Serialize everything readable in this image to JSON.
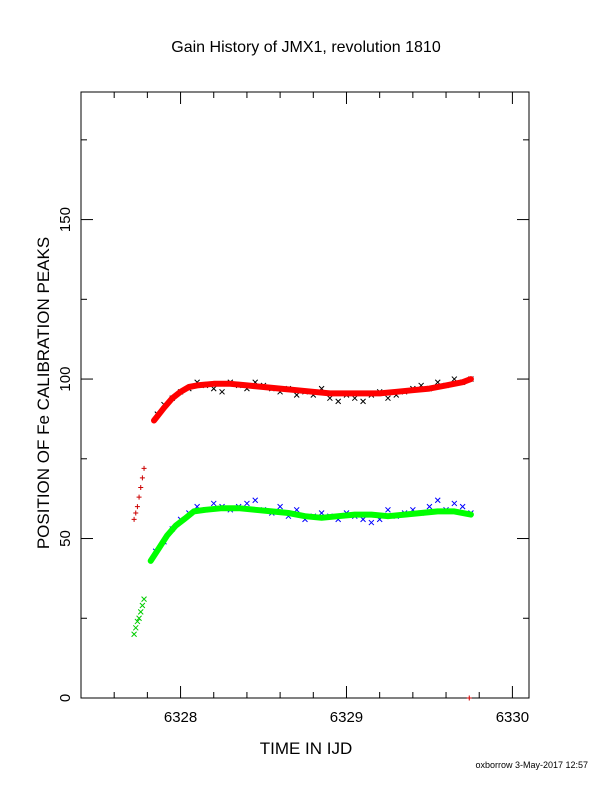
{
  "chart_data": {
    "type": "scatter",
    "title": "Gain History of JMX1, revolution 1810",
    "xlabel": "TIME IN IJD",
    "ylabel": "POSITION OF Fe CALIBRATION PEAKS",
    "xlim": [
      6327.4,
      6330.1
    ],
    "ylim": [
      0,
      190
    ],
    "x_ticks": [
      6328,
      6329,
      6330
    ],
    "y_ticks": [
      0,
      50,
      100,
      150
    ],
    "grid": false,
    "footer": "oxborrow  3-May-2017 12:57",
    "series": [
      {
        "marker": "x",
        "color": "#000000",
        "x": [
          6327.86,
          6327.9,
          6327.95,
          6328.0,
          6328.05,
          6328.1,
          6328.15,
          6328.2,
          6328.25,
          6328.3,
          6328.35,
          6328.4,
          6328.45,
          6328.5,
          6328.55,
          6328.6,
          6328.65,
          6328.7,
          6328.75,
          6328.8,
          6328.85,
          6328.9,
          6328.95,
          6329.0,
          6329.05,
          6329.1,
          6329.15,
          6329.2,
          6329.25,
          6329.3,
          6329.35,
          6329.4,
          6329.45,
          6329.5,
          6329.55,
          6329.6,
          6329.65,
          6329.7,
          6329.75
        ],
        "y": [
          89,
          92,
          94,
          96,
          97,
          99,
          98,
          97,
          96,
          99,
          98,
          97,
          99,
          98,
          97,
          96,
          97,
          95,
          96,
          95,
          97,
          94,
          93,
          95,
          94,
          93,
          95,
          96,
          94,
          95,
          96,
          97,
          98,
          97,
          99,
          98,
          100,
          99,
          100
        ]
      },
      {
        "marker": "line",
        "color": "#ff0000",
        "x": [
          6327.84,
          6327.9,
          6327.95,
          6328.0,
          6328.05,
          6328.1,
          6328.2,
          6328.3,
          6328.4,
          6328.5,
          6328.6,
          6328.7,
          6328.8,
          6328.9,
          6329.0,
          6329.1,
          6329.2,
          6329.3,
          6329.4,
          6329.5,
          6329.6,
          6329.7,
          6329.75
        ],
        "y": [
          87,
          91,
          94,
          96,
          97.5,
          98,
          98.5,
          98.5,
          98,
          97.5,
          97,
          96.5,
          96,
          95.5,
          95.5,
          95.5,
          95.5,
          96,
          96.5,
          97,
          98,
          99,
          100
        ]
      },
      {
        "marker": "+",
        "color": "#cc0000",
        "x": [
          6327.72,
          6327.73,
          6327.74,
          6327.75,
          6327.76,
          6327.77,
          6327.78
        ],
        "y": [
          56,
          58,
          60,
          63,
          66,
          69,
          72
        ]
      },
      {
        "marker": "x",
        "color": "#0000ff",
        "x": [
          6327.85,
          6327.9,
          6327.95,
          6328.0,
          6328.05,
          6328.1,
          6328.15,
          6328.2,
          6328.25,
          6328.3,
          6328.35,
          6328.4,
          6328.45,
          6328.5,
          6328.55,
          6328.6,
          6328.65,
          6328.7,
          6328.75,
          6328.8,
          6328.85,
          6328.9,
          6328.95,
          6329.0,
          6329.05,
          6329.1,
          6329.15,
          6329.2,
          6329.25,
          6329.3,
          6329.35,
          6329.4,
          6329.45,
          6329.5,
          6329.55,
          6329.6,
          6329.65,
          6329.7,
          6329.75
        ],
        "y": [
          46,
          49,
          53,
          56,
          58,
          60,
          59,
          61,
          60,
          59,
          60,
          61,
          62,
          59,
          58,
          60,
          57,
          59,
          56,
          57,
          58,
          57,
          56,
          58,
          57,
          56,
          55,
          56,
          59,
          57,
          58,
          59,
          58,
          60,
          62,
          59,
          61,
          60,
          58
        ]
      },
      {
        "marker": "line",
        "color": "#00ff00",
        "x": [
          6327.82,
          6327.87,
          6327.92,
          6327.97,
          6328.02,
          6328.08,
          6328.15,
          6328.25,
          6328.35,
          6328.45,
          6328.55,
          6328.65,
          6328.75,
          6328.85,
          6328.95,
          6329.05,
          6329.15,
          6329.25,
          6329.35,
          6329.45,
          6329.55,
          6329.65,
          6329.75
        ],
        "y": [
          43,
          47,
          51,
          54,
          56,
          58.5,
          59,
          59.5,
          59.5,
          59,
          58.5,
          58,
          57,
          56.5,
          57,
          57.5,
          57.5,
          57,
          57.5,
          58,
          58.5,
          58.5,
          57.5
        ]
      },
      {
        "marker": "x",
        "color": "#00cc00",
        "x": [
          6327.72,
          6327.73,
          6327.74,
          6327.75,
          6327.76,
          6327.77,
          6327.78
        ],
        "y": [
          20,
          22,
          24,
          25,
          27,
          29,
          31
        ]
      },
      {
        "marker": "+",
        "color": "#cc0000",
        "x": [
          6329.74
        ],
        "y": [
          0
        ]
      }
    ]
  }
}
